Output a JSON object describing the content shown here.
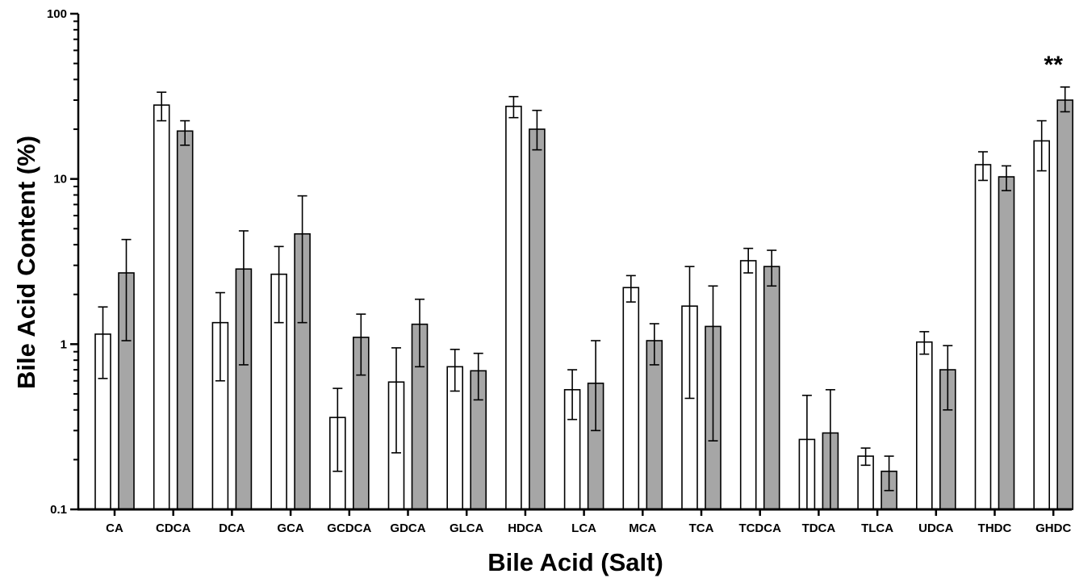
{
  "chart_data": {
    "type": "bar",
    "yscale": "log",
    "ylim": [
      0.1,
      100
    ],
    "ytick_labels": [
      "0.1",
      "1",
      "10",
      "100"
    ],
    "ytick_values": [
      0.1,
      1,
      10,
      100
    ],
    "xlabel": "Bile Acid (Salt)",
    "ylabel": "Bile Acid Content (%)",
    "grid": false,
    "categories": [
      "CA",
      "CDCA",
      "DCA",
      "GCA",
      "GCDCA",
      "GDCA",
      "GLCA",
      "HDCA",
      "LCA",
      "MCA",
      "TCA",
      "TCDCA",
      "TDCA",
      "TLCA",
      "UDCA",
      "THDC",
      "GHDC"
    ],
    "series": [
      {
        "fill": "#ffffff",
        "values": [
          1.15,
          28,
          1.35,
          2.65,
          0.36,
          0.59,
          0.73,
          27.5,
          0.53,
          2.2,
          1.7,
          3.2,
          0.265,
          0.21,
          1.03,
          12.2,
          17
        ],
        "error_low": [
          0.62,
          22.5,
          0.6,
          1.35,
          0.17,
          0.22,
          0.52,
          23.5,
          0.35,
          1.8,
          0.47,
          2.7,
          0.1,
          0.185,
          0.87,
          9.8,
          11.2
        ],
        "error_high": [
          1.68,
          33.5,
          2.05,
          3.9,
          0.54,
          0.95,
          0.93,
          31.5,
          0.7,
          2.6,
          2.95,
          3.8,
          0.49,
          0.235,
          1.19,
          14.6,
          22.5
        ]
      },
      {
        "fill": "#a6a6a6",
        "values": [
          2.7,
          19.5,
          2.85,
          4.65,
          1.1,
          1.32,
          0.69,
          20,
          0.58,
          1.05,
          1.28,
          2.95,
          0.29,
          0.17,
          0.7,
          10.3,
          30
        ],
        "error_low": [
          1.05,
          16,
          0.75,
          1.35,
          0.65,
          0.73,
          0.46,
          15,
          0.3,
          0.75,
          0.26,
          2.25,
          0.1,
          0.13,
          0.4,
          8.5,
          25.5
        ],
        "error_high": [
          4.3,
          22.5,
          4.85,
          7.9,
          1.52,
          1.87,
          0.88,
          26,
          1.05,
          1.33,
          2.25,
          3.7,
          0.53,
          0.21,
          0.98,
          12,
          36
        ]
      }
    ],
    "annotations": [
      {
        "text": "**",
        "category": "GHDC"
      }
    ]
  }
}
